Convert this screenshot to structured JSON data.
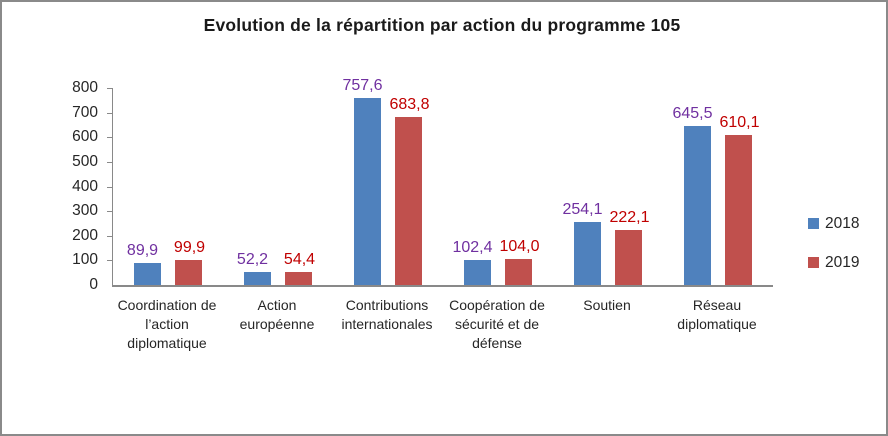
{
  "title": "Evolution de la répartition par action du programme 105",
  "chart_data": {
    "type": "bar",
    "title": "Evolution de la répartition par action du programme 105",
    "categories": [
      "Coordination de l’action diplomatique",
      "Action européenne",
      "Contributions internationales",
      "Coopération de sécurité et de défense",
      "Soutien",
      "Réseau diplomatique"
    ],
    "series": [
      {
        "name": "2018",
        "color": "#4F81BD",
        "label_color": "#7030A0",
        "values": [
          89.9,
          52.2,
          757.6,
          102.4,
          254.1,
          645.5
        ],
        "labels": [
          "89,9",
          "52,2",
          "757,6",
          "102,4",
          "254,1",
          "645,5"
        ]
      },
      {
        "name": "2019",
        "color": "#C0504D",
        "label_color": "#C00000",
        "values": [
          99.9,
          54.4,
          683.8,
          104.0,
          222.1,
          610.1
        ],
        "labels": [
          "99,9",
          "54,4",
          "683,8",
          "104,0",
          "222,1",
          "610,1"
        ]
      }
    ],
    "ylim": [
      0,
      800
    ],
    "ytick_step": 100,
    "yticks": [
      "0",
      "100",
      "200",
      "300",
      "400",
      "500",
      "600",
      "700",
      "800"
    ],
    "grid": false,
    "legend_position": "right",
    "axis_color": "#898989",
    "background_color": "#FFFFFF",
    "border_color": "#8A8A8A"
  }
}
